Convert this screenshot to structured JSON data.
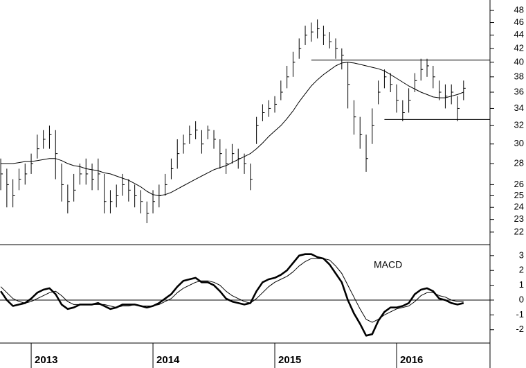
{
  "chart_data": [
    {
      "type": "ohlc",
      "x": [
        2012.75,
        2012.8,
        2012.85,
        2012.9,
        2012.95,
        2013,
        2013.05,
        2013.1,
        2013.15,
        2013.2,
        2013.25,
        2013.3,
        2013.35,
        2013.4,
        2013.45,
        2013.5,
        2013.55,
        2013.6,
        2013.65,
        2013.7,
        2013.75,
        2013.8,
        2013.85,
        2013.9,
        2013.95,
        2014,
        2014.05,
        2014.1,
        2014.15,
        2014.2,
        2014.25,
        2014.3,
        2014.35,
        2014.4,
        2014.45,
        2014.5,
        2014.55,
        2014.6,
        2014.65,
        2014.7,
        2014.75,
        2014.8,
        2014.85,
        2014.9,
        2014.95,
        2015,
        2015.05,
        2015.1,
        2015.15,
        2015.2,
        2015.25,
        2015.3,
        2015.35,
        2015.4,
        2015.45,
        2015.5,
        2015.55,
        2015.6,
        2015.65,
        2015.7,
        2015.75,
        2015.8,
        2015.85,
        2015.9,
        2015.95,
        2016,
        2016.05,
        2016.1,
        2016.15,
        2016.2,
        2016.25,
        2016.3,
        2016.35,
        2016.4,
        2016.45,
        2016.5,
        2016.55
      ],
      "high": [
        28.5,
        27.5,
        26.5,
        27.5,
        28,
        29,
        31,
        31.5,
        32,
        31.5,
        28,
        26,
        27,
        28,
        28.5,
        28,
        28.5,
        27,
        25.5,
        26,
        27,
        26.5,
        26,
        25.5,
        24.5,
        25.5,
        26,
        27,
        28.5,
        30.5,
        31,
        32,
        32.5,
        31.5,
        32,
        31.5,
        30.5,
        29.5,
        30,
        29.5,
        29,
        28,
        33,
        34.5,
        35,
        35.5,
        37.5,
        39.5,
        41.5,
        43.5,
        45.5,
        46,
        46.5,
        45.5,
        44.5,
        43.5,
        42,
        40,
        35,
        33,
        31,
        34,
        37.5,
        39,
        38.5,
        37,
        35,
        36.5,
        38.5,
        40.5,
        40.5,
        39.5,
        37.5,
        37,
        37,
        35.5,
        37.5
      ],
      "low": [
        25.5,
        24,
        24,
        25.5,
        26,
        27,
        28.5,
        29.5,
        29.5,
        26.5,
        24.5,
        23.5,
        24.5,
        26,
        26,
        25.5,
        25.5,
        23.5,
        23.5,
        24,
        25,
        24.5,
        24,
        23.5,
        22.7,
        23.5,
        24,
        25,
        26.5,
        27.5,
        29,
        30,
        30.5,
        29,
        30.5,
        29.5,
        27.5,
        27,
        28,
        27.5,
        27,
        25.5,
        30,
        32.5,
        33,
        33.5,
        35,
        36.5,
        38,
        40.5,
        42.5,
        43,
        43.5,
        42.5,
        42,
        40.5,
        39,
        34,
        31,
        29.5,
        27.2,
        30,
        34.5,
        36.5,
        36,
        33.5,
        32.5,
        33.5,
        36,
        37.5,
        38,
        36.5,
        35,
        34,
        34.5,
        32.5,
        35
      ],
      "close": [
        27,
        26,
        25,
        26.5,
        27,
        28,
        29.5,
        30.5,
        31,
        29,
        26,
        24.5,
        25.5,
        27,
        27,
        26.5,
        27,
        24.5,
        24.5,
        25,
        26,
        25.5,
        25,
        24.5,
        23.5,
        24.5,
        25,
        26,
        27.5,
        29,
        30,
        31,
        31.5,
        30,
        31.5,
        30.5,
        29,
        28,
        29,
        28.5,
        28,
        26.5,
        32,
        33.5,
        34,
        34.5,
        36,
        38,
        40,
        42,
        44,
        44.5,
        45,
        44,
        43,
        42,
        41,
        37,
        33,
        31,
        28.5,
        32,
        36,
        38,
        37,
        35,
        33.5,
        35,
        37.5,
        39,
        39.5,
        38,
        36,
        35.5,
        36,
        34,
        36.5
      ],
      "color": "#000000",
      "series": [
        {
          "color": "#000000",
          "width": 1,
          "values": [
            28.0,
            28.0,
            28.0,
            28.1,
            28.2,
            28.2,
            28.3,
            28.4,
            28.5,
            28.5,
            28.3,
            28.0,
            27.8,
            27.7,
            27.5,
            27.4,
            27.3,
            27.1,
            27.0,
            26.8,
            26.6,
            26.4,
            26.1,
            25.8,
            25.4,
            25.1,
            25.0,
            25.1,
            25.3,
            25.6,
            25.9,
            26.2,
            26.5,
            26.8,
            27.1,
            27.4,
            27.6,
            27.8,
            28.1,
            28.4,
            28.7,
            29.0,
            29.5,
            30.1,
            30.8,
            31.4,
            32.0,
            32.8,
            33.7,
            34.8,
            35.8,
            36.8,
            37.6,
            38.3,
            38.9,
            39.5,
            39.9,
            40.0,
            39.9,
            39.7,
            39.5,
            39.3,
            39.1,
            38.8,
            38.3,
            37.8,
            37.3,
            36.8,
            36.4,
            36.0,
            35.7,
            35.4,
            35.3,
            35.3,
            35.5,
            35.7,
            36.0
          ]
        }
      ],
      "hlines": [
        {
          "value": 40.3,
          "from": 2015.3
        },
        {
          "value": 32.7,
          "from": 2015.9
        }
      ],
      "xlim": [
        2012.744,
        2016.767
      ],
      "ylim": [
        21.1,
        49.8
      ],
      "log_scale": true,
      "yticks": [
        22,
        23,
        24,
        25,
        26,
        28,
        30,
        32,
        34,
        36,
        38,
        40,
        42,
        44,
        46,
        48
      ]
    },
    {
      "type": "line",
      "annotation": "MACD",
      "x": [
        2012.75,
        2012.8,
        2012.85,
        2012.9,
        2012.95,
        2013,
        2013.05,
        2013.1,
        2013.15,
        2013.2,
        2013.25,
        2013.3,
        2013.35,
        2013.4,
        2013.45,
        2013.5,
        2013.55,
        2013.6,
        2013.65,
        2013.7,
        2013.75,
        2013.8,
        2013.85,
        2013.9,
        2013.95,
        2014,
        2014.05,
        2014.1,
        2014.15,
        2014.2,
        2014.25,
        2014.3,
        2014.35,
        2014.4,
        2014.45,
        2014.5,
        2014.55,
        2014.6,
        2014.65,
        2014.7,
        2014.75,
        2014.8,
        2014.85,
        2014.9,
        2014.95,
        2015,
        2015.05,
        2015.1,
        2015.15,
        2015.2,
        2015.25,
        2015.3,
        2015.35,
        2015.4,
        2015.45,
        2015.5,
        2015.55,
        2015.6,
        2015.65,
        2015.7,
        2015.75,
        2015.8,
        2015.85,
        2015.9,
        2015.95,
        2016,
        2016.05,
        2016.1,
        2016.15,
        2016.2,
        2016.25,
        2016.3,
        2016.35,
        2016.4,
        2016.45,
        2016.5,
        2016.55
      ],
      "series": [
        {
          "color": "#000000",
          "width": 2.6,
          "values": [
            0.6,
            0,
            -0.4,
            -0.3,
            -0.2,
            0.1,
            0.5,
            0.7,
            0.8,
            0.4,
            -0.3,
            -0.6,
            -0.5,
            -0.3,
            -0.3,
            -0.3,
            -0.2,
            -0.4,
            -0.6,
            -0.5,
            -0.3,
            -0.3,
            -0.3,
            -0.4,
            -0.5,
            -0.4,
            -0.2,
            0.1,
            0.4,
            0.9,
            1.3,
            1.4,
            1.5,
            1.2,
            1.2,
            1.0,
            0.6,
            0.1,
            -0.1,
            -0.2,
            -0.3,
            -0.2,
            0.6,
            1.2,
            1.4,
            1.5,
            1.7,
            2.0,
            2.5,
            3.0,
            3.1,
            3.1,
            2.9,
            2.8,
            2.4,
            1.8,
            1.2,
            0,
            -0.9,
            -1.6,
            -2.4,
            -2.3,
            -1.4,
            -0.8,
            -0.5,
            -0.5,
            -0.4,
            -0.2,
            0.4,
            0.7,
            0.8,
            0.6,
            0.1,
            0,
            -0.2,
            -0.3,
            -0.2
          ]
        },
        {
          "color": "#000000",
          "width": 1,
          "values": [
            0.9,
            0.5,
            0.1,
            -0.1,
            -0.2,
            -0.1,
            0.1,
            0.3,
            0.5,
            0.6,
            0.3,
            -0.1,
            -0.3,
            -0.3,
            -0.3,
            -0.3,
            -0.3,
            -0.3,
            -0.4,
            -0.5,
            -0.4,
            -0.4,
            -0.3,
            -0.4,
            -0.4,
            -0.4,
            -0.3,
            -0.1,
            0.1,
            0.5,
            0.8,
            1.0,
            1.2,
            1.3,
            1.3,
            1.2,
            1.0,
            0.6,
            0.3,
            0.1,
            -0.1,
            -0.2,
            0.1,
            0.5,
            0.9,
            1.2,
            1.4,
            1.6,
            1.9,
            2.3,
            2.6,
            2.8,
            2.8,
            2.8,
            2.7,
            2.3,
            1.8,
            1.0,
            0.2,
            -0.6,
            -1.3,
            -1.5,
            -1.3,
            -1.0,
            -0.8,
            -0.6,
            -0.5,
            -0.4,
            -0.1,
            0.3,
            0.5,
            0.5,
            0.3,
            0.2,
            0,
            -0.1,
            -0.1
          ]
        }
      ],
      "zero_line": true,
      "xlim": [
        2012.744,
        2016.767
      ],
      "xticks": [
        2013,
        2014,
        2015,
        2016
      ],
      "ylim": [
        -2.9,
        3.74
      ],
      "yticks": [
        -2,
        -1,
        0,
        1,
        2,
        3
      ]
    }
  ]
}
